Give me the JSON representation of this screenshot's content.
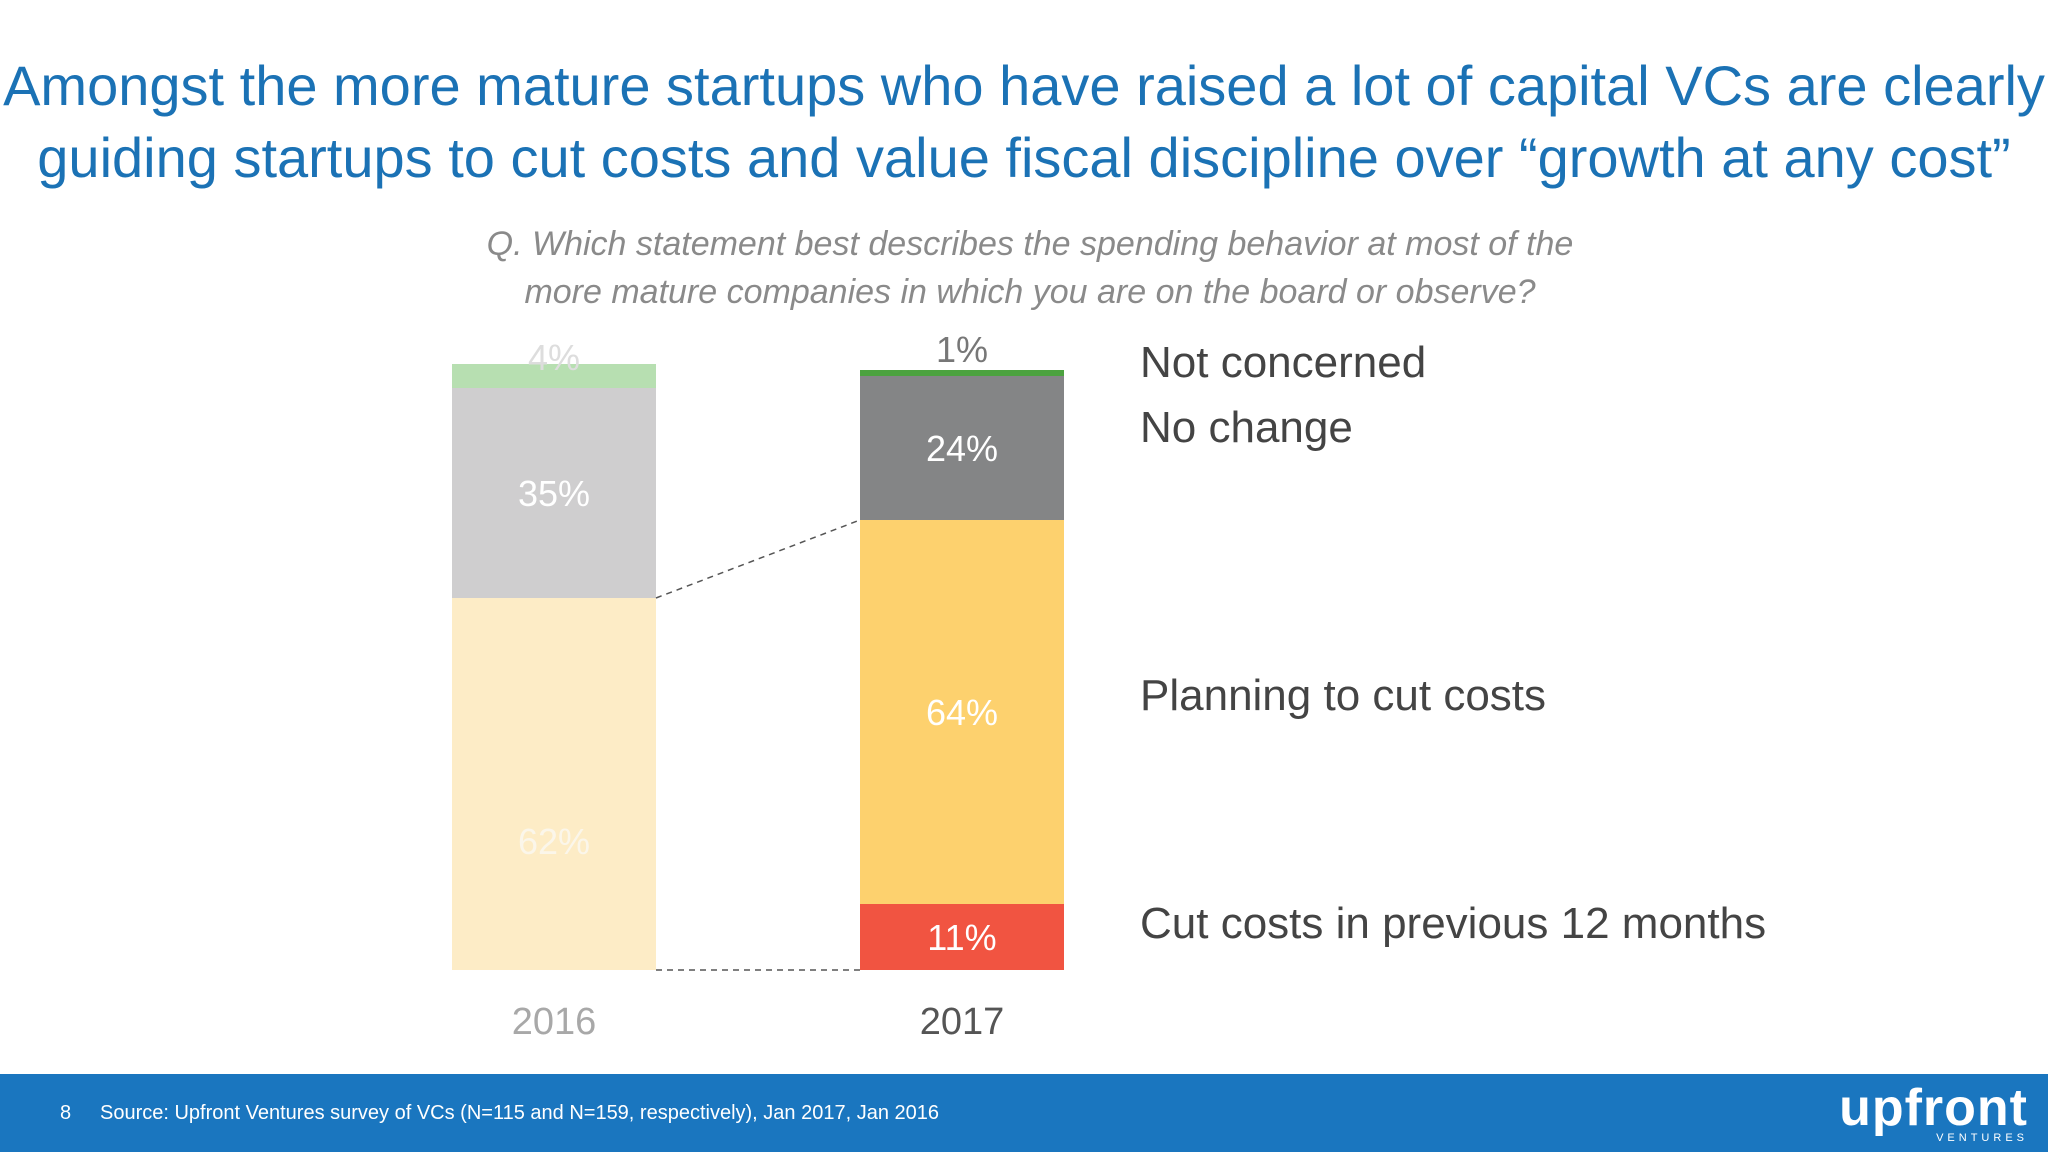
{
  "title": {
    "line1": "Amongst the more mature startups who have raised a lot of capital VCs are clearly",
    "line2": "guiding startups to cut costs and value fiscal discipline over “growth at any cost”"
  },
  "question": {
    "line1": "Q. Which statement best describes the spending behavior at most of the",
    "line2": "more mature companies in which you are on the board or observe?"
  },
  "chart_data": {
    "type": "bar",
    "stacked": true,
    "categories": [
      "2016",
      "2017"
    ],
    "series": [
      {
        "name": "Cut costs in previous 12 months",
        "values": [
          null,
          11
        ],
        "labels": [
          "",
          "11%"
        ],
        "colors": [
          "#fdecc6",
          "#f15441"
        ],
        "text_colors": [
          "#ffffff",
          "#ffffff"
        ]
      },
      {
        "name": "Planning to cut costs",
        "values": [
          62,
          64
        ],
        "labels": [
          "62%",
          "64%"
        ],
        "colors": [
          "#fdecc6",
          "#fdd16e"
        ],
        "text_colors": [
          "#fbf6ea",
          "#ffffff"
        ]
      },
      {
        "name": "No change",
        "values": [
          35,
          24
        ],
        "labels": [
          "35%",
          "24%"
        ],
        "colors": [
          "#cfcecf",
          "#848586"
        ],
        "text_colors": [
          "#ffffff",
          "#ffffff"
        ]
      },
      {
        "name": "Not concerned",
        "values": [
          4,
          1
        ],
        "labels": [
          "4%",
          "1%"
        ],
        "colors": [
          "#b7dfb1",
          "#4ca23f"
        ],
        "text_colors": [
          "#dddddd",
          "#777777"
        ]
      }
    ],
    "category_label_colors": [
      "#a8a8a8",
      "#555555"
    ],
    "ylim": [
      0,
      100
    ],
    "legend_position": "right"
  },
  "footer": {
    "page_number": "8",
    "source": "Source: Upfront Ventures survey of VCs (N=115 and N=159, respectively), Jan 2017, Jan 2016",
    "logo": "upfront",
    "logo_sub": "VENTURES",
    "background": "#1a76bf"
  }
}
